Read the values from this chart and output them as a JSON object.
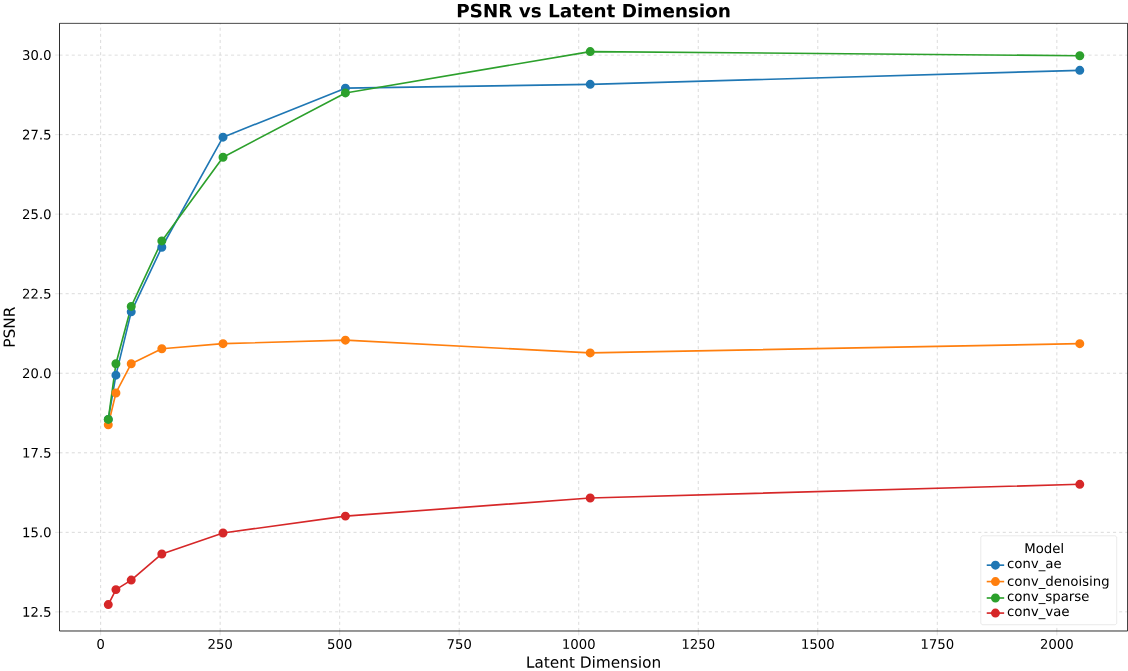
{
  "chart_data": {
    "type": "line",
    "title": "PSNR vs Latent Dimension",
    "xlabel": "Latent Dimension",
    "ylabel": "PSNR",
    "legend_title": "Model",
    "x": [
      16,
      32,
      64,
      128,
      256,
      512,
      1024,
      2048
    ],
    "series": [
      {
        "name": "conv_ae",
        "color": "#1f77b4",
        "values": [
          18.55,
          19.94,
          21.93,
          23.96,
          27.42,
          28.96,
          29.08,
          29.52
        ]
      },
      {
        "name": "conv_denoising",
        "color": "#ff7f0e",
        "values": [
          18.38,
          19.38,
          20.3,
          20.77,
          20.93,
          21.04,
          20.64,
          20.93
        ]
      },
      {
        "name": "conv_sparse",
        "color": "#2ca02c",
        "values": [
          18.55,
          20.3,
          22.1,
          24.16,
          26.79,
          28.81,
          30.11,
          29.98
        ]
      },
      {
        "name": "conv_vae",
        "color": "#d62728",
        "values": [
          12.73,
          13.2,
          13.5,
          14.32,
          14.98,
          15.51,
          16.08,
          16.51
        ]
      }
    ],
    "xlim": [
      -86,
      2148
    ],
    "ylim": [
      11.9,
      31.0
    ],
    "xticks": [
      0,
      250,
      500,
      750,
      1000,
      1250,
      1500,
      1750,
      2000
    ],
    "yticks": [
      {
        "value": 12.5,
        "label": "12.5"
      },
      {
        "value": 15,
        "label": "15.0"
      },
      {
        "value": 17.5,
        "label": "17.5"
      },
      {
        "value": 20,
        "label": "20.0"
      },
      {
        "value": 22.5,
        "label": "22.5"
      },
      {
        "value": 25,
        "label": "25.0"
      },
      {
        "value": 27.5,
        "label": "27.5"
      },
      {
        "value": 30,
        "label": "30.0"
      }
    ],
    "grid": true,
    "legend": "bottom right",
    "marker": "circle",
    "line_style": "solid"
  }
}
